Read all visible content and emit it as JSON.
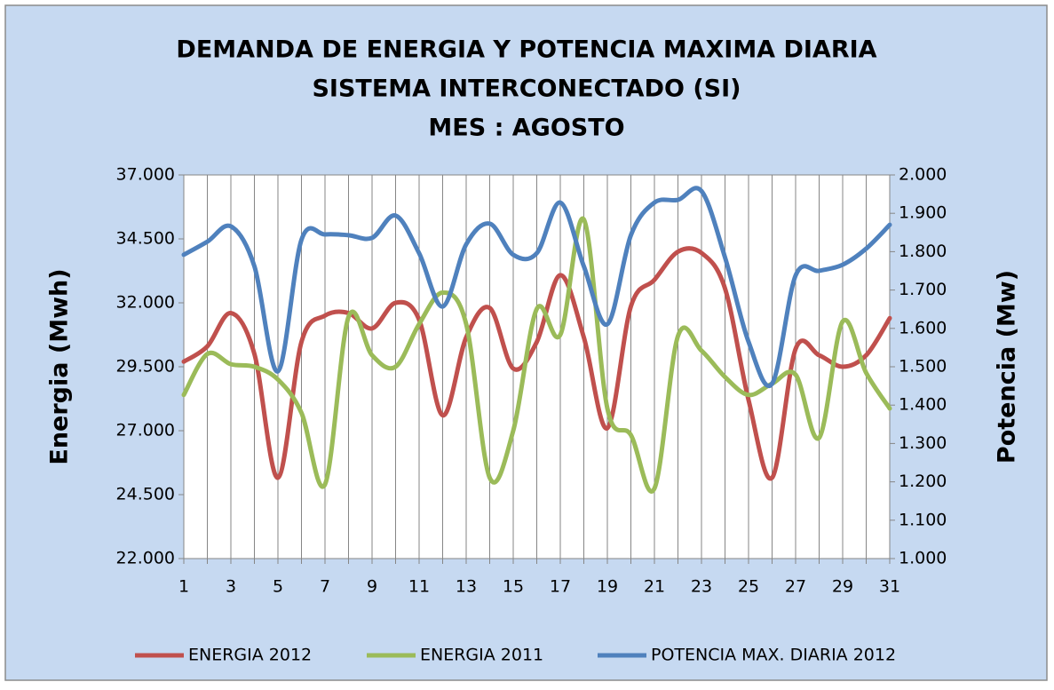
{
  "chart_data": {
    "type": "line",
    "title": [
      "DEMANDA DE ENERGIA Y POTENCIA MAXIMA DIARIA",
      "SISTEMA INTERCONECTADO (SI)",
      "MES : AGOSTO"
    ],
    "y_label": "Energia (Mwh)",
    "y2_label": "Potencia (Mw)",
    "categories": [
      "1",
      null,
      "3",
      null,
      "5",
      null,
      "7",
      null,
      "9",
      null,
      "11",
      null,
      "13",
      null,
      "15",
      null,
      "17",
      null,
      "19",
      null,
      "21",
      null,
      "23",
      null,
      "25",
      null,
      "27",
      null,
      "29",
      null,
      "31"
    ],
    "ylim": [
      22000,
      37000
    ],
    "yticks": [
      {
        "value": 22000,
        "label": "22.000"
      },
      {
        "value": 24500,
        "label": "24.500"
      },
      {
        "value": 27000,
        "label": "27.000"
      },
      {
        "value": 29500,
        "label": "29.500"
      },
      {
        "value": 32000,
        "label": "32.000"
      },
      {
        "value": 34500,
        "label": "34.500"
      },
      {
        "value": 37000,
        "label": "37.000"
      }
    ],
    "y2lim": [
      1,
      2
    ],
    "y2ticks": [
      {
        "value": 1,
        "label": "1.000"
      },
      {
        "value": 1.1,
        "label": "1.100"
      },
      {
        "value": 1.2,
        "label": "1.200"
      },
      {
        "value": 1.3,
        "label": "1.300"
      },
      {
        "value": 1.4,
        "label": "1.400"
      },
      {
        "value": 1.5,
        "label": "1.500"
      },
      {
        "value": 1.6,
        "label": "1.600"
      },
      {
        "value": 1.7,
        "label": "1.700"
      },
      {
        "value": 1.8,
        "label": "1.800"
      },
      {
        "value": 1.9,
        "label": "1.900"
      },
      {
        "value": 2,
        "label": "2.000"
      }
    ],
    "grid": true,
    "legend": "bottom",
    "series": [
      {
        "name": "ENERGIA 2012",
        "color": "#c0504d",
        "values": [
          29700,
          30300,
          31600,
          30000,
          25160,
          30470,
          31500,
          31600,
          31000,
          32000,
          31340,
          27600,
          30650,
          31800,
          29430,
          30470,
          33080,
          30650,
          27100,
          31860,
          32900,
          34000,
          33950,
          32560,
          28200,
          25160,
          30200,
          29950,
          29500,
          29950,
          31400
        ]
      },
      {
        "name": "ENERGIA 2011",
        "color": "#9bbb59",
        "values": [
          28400,
          30000,
          29600,
          29500,
          29000,
          27700,
          24900,
          31450,
          29950,
          29500,
          31170,
          32400,
          31170,
          25160,
          27000,
          31760,
          30750,
          35260,
          27870,
          26830,
          24740,
          30700,
          30130,
          29100,
          28400,
          28840,
          29190,
          26720,
          31270,
          29260,
          27870
        ]
      },
      {
        "name": "POTENCIA MAX. DIARIA 2012",
        "color": "#4f81bd",
        "axis": "y2",
        "values": [
          1.792,
          1.826,
          1.866,
          1.762,
          1.488,
          1.831,
          1.845,
          1.843,
          1.836,
          1.894,
          1.796,
          1.657,
          1.819,
          1.873,
          1.792,
          1.796,
          1.928,
          1.762,
          1.611,
          1.843,
          1.928,
          1.935,
          1.958,
          1.785,
          1.565,
          1.456,
          1.738,
          1.75,
          1.766,
          1.808,
          1.87
        ]
      }
    ]
  }
}
